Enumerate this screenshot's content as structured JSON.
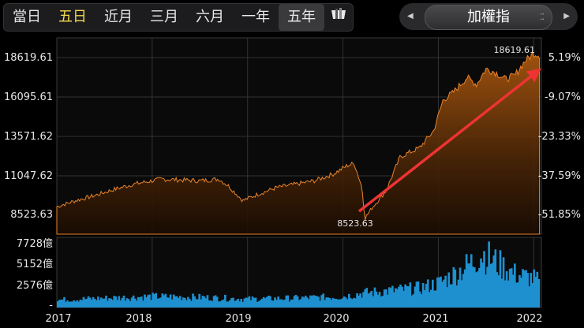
{
  "range_tabs": [
    {
      "label": "當日"
    },
    {
      "label": "五日"
    },
    {
      "label": "近月"
    },
    {
      "label": "三月"
    },
    {
      "label": "六月"
    },
    {
      "label": "一年"
    },
    {
      "label": "五年"
    }
  ],
  "index_name": "加權指",
  "colors": {
    "price_line": "#e8842a",
    "volume": "#1e90d0",
    "arrow": "#ee3333",
    "highlight_tab": "#f2d84b"
  },
  "chart_data": [
    {
      "type": "area",
      "left_axis_ticks": [
        "18619.61",
        "16095.61",
        "13571.62",
        "11047.62",
        "8523.63"
      ],
      "right_axis_ticks": [
        "5.19%",
        "-9.07%",
        "-23.33%",
        "-37.59%",
        "-51.85%"
      ],
      "ylim": [
        7800,
        19200
      ],
      "annotations": {
        "high_label": "18619.61",
        "low_label": "8523.63"
      },
      "series": [
        {
          "x": [
            2017.0,
            2017.2,
            2017.4,
            2017.6,
            2017.8,
            2018.0,
            2018.1,
            2018.3,
            2018.5,
            2018.7,
            2018.8,
            2018.95,
            2019.1,
            2019.3,
            2019.5,
            2019.7,
            2019.9,
            2020.05,
            2020.12,
            2020.2,
            2020.23,
            2020.3,
            2020.45,
            2020.6,
            2020.8,
            2020.95,
            2021.05,
            2021.15,
            2021.3,
            2021.4,
            2021.5,
            2021.6,
            2021.7,
            2021.8,
            2021.9,
            2022.0,
            2022.06
          ],
          "values": [
            9400,
            9750,
            10050,
            10400,
            10700,
            10900,
            11000,
            10950,
            10900,
            11000,
            10600,
            9750,
            10100,
            10500,
            10700,
            10900,
            11300,
            11800,
            11900,
            10500,
            8700,
            9300,
            10300,
            12300,
            12800,
            13800,
            15600,
            16000,
            16900,
            16500,
            17400,
            17200,
            16800,
            17000,
            17800,
            18300,
            18200
          ]
        }
      ]
    },
    {
      "type": "bar",
      "left_axis_ticks": [
        "7728億",
        "5152億",
        "2576億",
        "-"
      ],
      "ylim": [
        0,
        8500
      ],
      "x_ticks": [
        "2017",
        "2018",
        "2019",
        "2020",
        "2021",
        "2022"
      ],
      "series": [
        {
          "x": [
            2017.0,
            2017.5,
            2018.0,
            2018.5,
            2019.0,
            2019.5,
            2020.0,
            2020.2,
            2020.5,
            2020.8,
            2021.0,
            2021.2,
            2021.35,
            2021.45,
            2021.6,
            2021.8,
            2022.0,
            2022.06
          ],
          "values": [
            900,
            1100,
            1300,
            1200,
            1000,
            1100,
            1300,
            1700,
            2000,
            2300,
            2900,
            4200,
            5400,
            6400,
            5300,
            3900,
            3400,
            2800
          ]
        }
      ]
    }
  ]
}
